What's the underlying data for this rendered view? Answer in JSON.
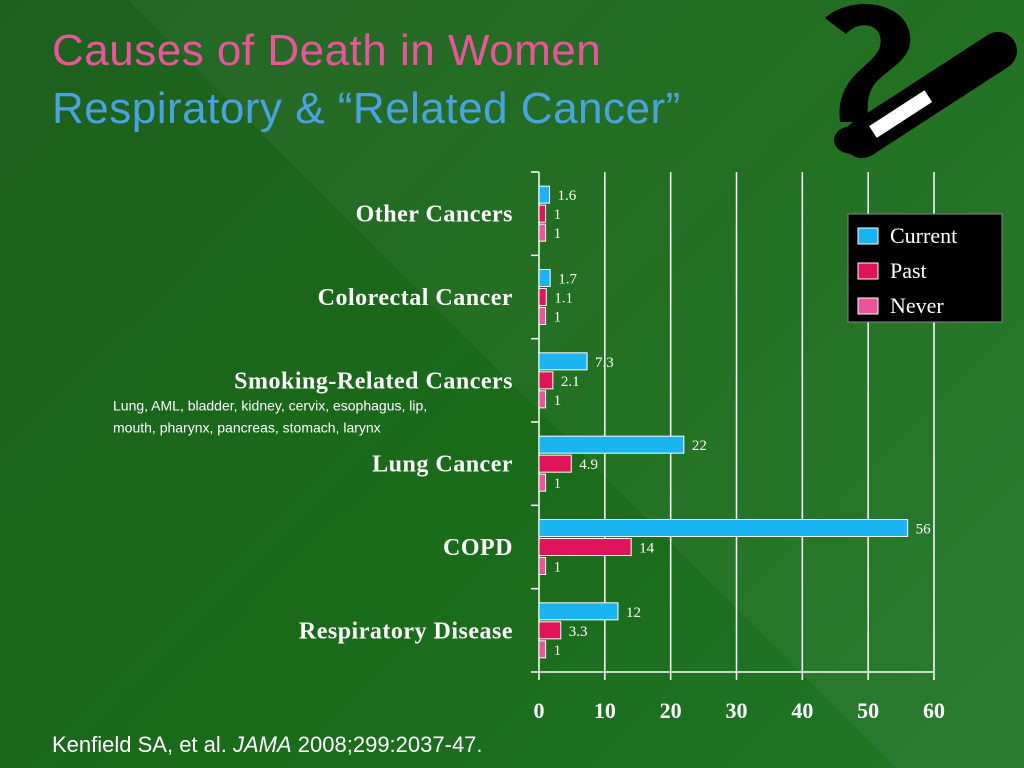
{
  "slide": {
    "title": "Causes of Death in Women",
    "subtitle": "Respiratory & “Related Cancer”",
    "citation_authors": "Kenfield SA, et al. ",
    "citation_journal": "JAMA",
    "citation_rest": " 2008;299:2037-47."
  },
  "colors": {
    "current": "#1ab4f0",
    "past": "#e0145a",
    "never": "#e8559a",
    "title": "#e8559a",
    "subtitle": "#4aa3e0"
  },
  "chart_data": {
    "type": "bar",
    "orientation": "horizontal",
    "categories": [
      "Other Cancers",
      "Colorectal Cancer",
      "Smoking-Related Cancers",
      "Lung Cancer",
      "COPD",
      "Respiratory Disease"
    ],
    "category_note": {
      "category": "Smoking-Related Cancers",
      "lines": [
        "Lung, AML, bladder, kidney, cervix, esophagus, lip,",
        "mouth, pharynx, pancreas, stomach, larynx"
      ]
    },
    "series": [
      {
        "name": "Current",
        "values": [
          1.6,
          1.7,
          7.3,
          22,
          56,
          12
        ],
        "labels": [
          "1.6",
          "1.7",
          "7.3",
          "22",
          "56",
          "12"
        ]
      },
      {
        "name": "Past",
        "values": [
          1,
          1.1,
          2.1,
          4.9,
          14,
          3.3
        ],
        "labels": [
          "1",
          "1.1",
          "2.1",
          "4.9",
          "14",
          "3.3"
        ]
      },
      {
        "name": "Never",
        "values": [
          1,
          1,
          1,
          1,
          1,
          1
        ],
        "labels": [
          "1",
          "1",
          "1",
          "1",
          "1",
          "1"
        ]
      }
    ],
    "xlim": [
      0,
      60
    ],
    "xticks": [
      0,
      10,
      20,
      30,
      40,
      50,
      60
    ],
    "grid": true,
    "legend_position": "top-right"
  }
}
